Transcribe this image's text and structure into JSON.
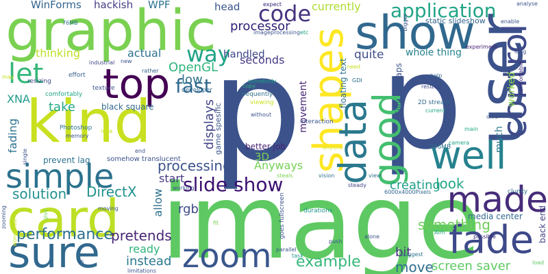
{
  "cloud": {
    "words": [
      {
        "text": "p",
        "color": "#3b528b"
      },
      {
        "text": "p",
        "color": "#3b528b"
      },
      {
        "text": "image",
        "color": "#5ec962"
      },
      {
        "text": "graphic",
        "color": "#7ad151"
      },
      {
        "text": "kind",
        "color": "#c8e020"
      },
      {
        "text": "card",
        "color": "#bddf26"
      },
      {
        "text": "user",
        "color": "#3b528b"
      },
      {
        "text": "top",
        "color": "#440154"
      },
      {
        "text": "show",
        "color": "#31688e"
      },
      {
        "text": "sure",
        "color": "#31688e"
      },
      {
        "text": "shapes",
        "color": "#fde725"
      },
      {
        "text": "zoom",
        "color": "#39568c"
      },
      {
        "text": "data",
        "color": "#2a788e"
      },
      {
        "text": "control",
        "color": "#3e4a89"
      },
      {
        "text": "fade",
        "color": "#3e4989"
      },
      {
        "text": "made",
        "color": "#472c7a"
      },
      {
        "text": "well",
        "color": "#26828e"
      },
      {
        "text": "good",
        "color": "#44bf70"
      },
      {
        "text": "simple",
        "color": "#2c728e"
      },
      {
        "text": "slide show",
        "color": "#3b0f70"
      },
      {
        "text": "let",
        "color": "#35b779"
      },
      {
        "text": "code",
        "color": "#46337f"
      },
      {
        "text": "application",
        "color": "#20a486"
      },
      {
        "text": "way",
        "color": "#20a386"
      },
      {
        "text": "fast",
        "color": "#31688e"
      },
      {
        "text": "processor",
        "color": "#2d1e73"
      },
      {
        "text": "performance",
        "color": "#2c718e"
      },
      {
        "text": "example",
        "color": "#35b779"
      },
      {
        "text": "solution",
        "color": "#21918c"
      },
      {
        "text": "DirectX",
        "color": "#21918c"
      },
      {
        "text": "processing",
        "color": "#3b528b"
      },
      {
        "text": "pretends",
        "color": "#482576"
      },
      {
        "text": "something",
        "color": "#6ece58"
      },
      {
        "text": "creating",
        "color": "#1f9e89"
      },
      {
        "text": "look",
        "color": "#22a884"
      },
      {
        "text": "move",
        "color": "#2e6e8e"
      },
      {
        "text": "screen saver",
        "color": "#5ec962"
      },
      {
        "text": "instead",
        "color": "#2a788e"
      },
      {
        "text": "displays",
        "color": "#414487"
      },
      {
        "text": "OpenGL",
        "color": "#2fb47c"
      },
      {
        "text": "WinForms",
        "color": "#33638d"
      },
      {
        "text": "hackish",
        "color": "#433d84"
      },
      {
        "text": "WPF",
        "color": "#2c728e"
      },
      {
        "text": "head",
        "color": "#39568c"
      },
      {
        "text": "currently",
        "color": "#addc30"
      },
      {
        "text": "seconds",
        "color": "#443a83"
      },
      {
        "text": "handled",
        "color": "#3f4889"
      },
      {
        "text": "quite",
        "color": "#3e4c8a"
      },
      {
        "text": "whole thing",
        "color": "#26818e"
      },
      {
        "text": "thinking",
        "color": "#bddf26"
      },
      {
        "text": "actual",
        "color": "#2c728e"
      },
      {
        "text": "low",
        "color": "#2e6f8e"
      },
      {
        "text": "XNA",
        "color": "#1f9a8a"
      },
      {
        "text": "take",
        "color": "#22a785"
      },
      {
        "text": "fading",
        "color": "#2c728e"
      },
      {
        "text": "start",
        "color": "#443983"
      },
      {
        "text": "rgb",
        "color": "#3e4a89"
      },
      {
        "text": "allow",
        "color": "#2d708e"
      },
      {
        "text": "ready",
        "color": "#2fb47c"
      },
      {
        "text": "bit",
        "color": "#46337f"
      },
      {
        "text": "3D",
        "color": "#7ad151"
      },
      {
        "text": "Anyways",
        "color": "#75d054"
      },
      {
        "text": "movement",
        "color": "#482475"
      },
      {
        "text": "worked",
        "color": "#84d44b"
      },
      {
        "text": "much",
        "color": "#2a788e"
      },
      {
        "text": "better job",
        "color": "#482173"
      },
      {
        "text": "black square",
        "color": "#31688e"
      },
      {
        "text": "prevent lag",
        "color": "#2c728e"
      },
      {
        "text": "media center",
        "color": "#31688e"
      },
      {
        "text": "back end",
        "color": "#414487"
      },
      {
        "text": "floating text",
        "color": "#2c728e"
      },
      {
        "text": "Silly perhaps",
        "color": "#3b528b"
      },
      {
        "text": "static slideshow",
        "color": "#33638d"
      },
      {
        "text": "experiment",
        "color": "#482475"
      },
      {
        "text": "game spesific",
        "color": "#39568c"
      },
      {
        "text": "somehow translucent",
        "color": "#3b528b"
      },
      {
        "text": "Photoshop",
        "color": "#2c728e"
      },
      {
        "text": "memory",
        "color": "#39568c"
      },
      {
        "text": "texture",
        "color": "#3b528b"
      },
      {
        "text": "industrial",
        "color": "#404688"
      },
      {
        "text": "resizing",
        "color": "#3f4889"
      },
      {
        "text": "effort",
        "color": "#355f8d"
      },
      {
        "text": "comfortably",
        "color": "#20a386"
      },
      {
        "text": "developer",
        "color": "#31688e"
      },
      {
        "text": "rather",
        "color": "#34618d"
      },
      {
        "text": "imageprocessing",
        "color": "#3b528b"
      },
      {
        "text": "copy",
        "color": "#2fb47c"
      },
      {
        "text": "frequently",
        "color": "#2e6e8e"
      },
      {
        "text": "without",
        "color": "#3b528b"
      },
      {
        "text": "somebody",
        "color": "#1fa088"
      },
      {
        "text": "viewing",
        "color": "#c8e020"
      },
      {
        "text": "GDI",
        "color": "#2e6e8e"
      },
      {
        "text": "need",
        "color": "#c8e020"
      },
      {
        "text": "help",
        "color": "#33638d"
      },
      {
        "text": "resized",
        "color": "#3e4989"
      },
      {
        "text": "2D stream",
        "color": "#31688e"
      },
      {
        "text": "current",
        "color": "#20a486"
      },
      {
        "text": "interaction",
        "color": "#3b528b"
      },
      {
        "text": "parallel",
        "color": "#39568c"
      },
      {
        "text": "vision",
        "color": "#2d708e"
      },
      {
        "text": "steals",
        "color": "#7ad151"
      },
      {
        "text": "steady",
        "color": "#414487"
      },
      {
        "text": "view",
        "color": "#2e6e8e"
      },
      {
        "text": "durations",
        "color": "#1f968b"
      },
      {
        "text": "goes fullscreen",
        "color": "#3b528b"
      },
      {
        "text": "6000x4000Pixels",
        "color": "#31688e"
      },
      {
        "text": "256MB",
        "color": "#2e6f8e"
      },
      {
        "text": "camera",
        "color": "#1fa088"
      },
      {
        "text": "anyone",
        "color": "#dde318"
      },
      {
        "text": "main",
        "color": "#22a884"
      },
      {
        "text": "dive",
        "color": "#39568c"
      },
      {
        "text": "clunky",
        "color": "#2d708e"
      },
      {
        "text": "possible",
        "color": "#2d1e73"
      },
      {
        "text": "suggest",
        "color": "#2c728e"
      },
      {
        "text": "alone",
        "color": "#3b528b"
      },
      {
        "text": "push",
        "color": "#3b528b"
      },
      {
        "text": "Aim",
        "color": "#22a884"
      },
      {
        "text": "task",
        "color": "#1f988b"
      },
      {
        "text": "limitations",
        "color": "#3b528b"
      },
      {
        "text": "us",
        "color": "#3b528b"
      },
      {
        "text": "working",
        "color": "#3b528b"
      },
      {
        "text": "moving",
        "color": "#3b528b"
      },
      {
        "text": "fit",
        "color": "#7ad151"
      },
      {
        "text": "give",
        "color": "#7ad151"
      },
      {
        "text": "zooming",
        "color": "#3b528b"
      },
      {
        "text": "wondered",
        "color": "#c8e020"
      },
      {
        "text": "single",
        "color": "#3b528b"
      },
      {
        "text": "end",
        "color": "#3b528b"
      },
      {
        "text": "idea",
        "color": "#c8e020"
      },
      {
        "text": "expect",
        "color": "#2d1e73"
      },
      {
        "text": "76MB",
        "color": "#2c728e"
      },
      {
        "text": "bigger",
        "color": "#3b528b"
      },
      {
        "text": "etc",
        "color": "#20a386"
      },
      {
        "text": "enable",
        "color": "#3b528b"
      },
      {
        "text": "analyse",
        "color": "#3b528b"
      },
      {
        "text": "long",
        "color": "#3b528b"
      },
      {
        "text": "comfortable",
        "color": "#2d1e73"
      },
      {
        "text": "new",
        "color": "#3b528b"
      },
      {
        "text": "may",
        "color": "#c8e020"
      },
      {
        "text": "load",
        "color": "#5ec962"
      }
    ]
  }
}
